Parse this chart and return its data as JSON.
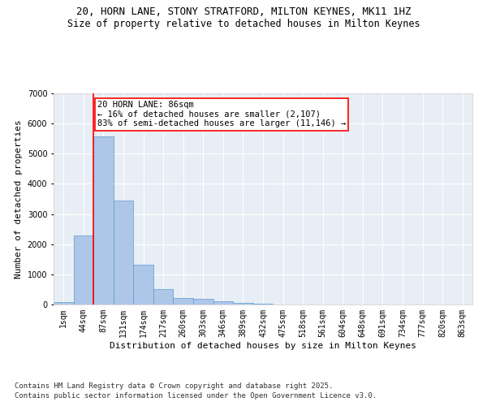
{
  "title": "20, HORN LANE, STONY STRATFORD, MILTON KEYNES, MK11 1HZ",
  "subtitle": "Size of property relative to detached houses in Milton Keynes",
  "xlabel": "Distribution of detached houses by size in Milton Keynes",
  "ylabel": "Number of detached properties",
  "categories": [
    "1sqm",
    "44sqm",
    "87sqm",
    "131sqm",
    "174sqm",
    "217sqm",
    "260sqm",
    "303sqm",
    "346sqm",
    "389sqm",
    "432sqm",
    "475sqm",
    "518sqm",
    "561sqm",
    "604sqm",
    "648sqm",
    "691sqm",
    "734sqm",
    "777sqm",
    "820sqm",
    "863sqm"
  ],
  "values": [
    75,
    2300,
    5570,
    3450,
    1320,
    510,
    215,
    190,
    100,
    65,
    40,
    0,
    0,
    0,
    0,
    0,
    0,
    0,
    0,
    0,
    0
  ],
  "bar_color": "#aec6e8",
  "bar_edge_color": "#5b9bd5",
  "vline_x": 1.5,
  "vline_color": "red",
  "annotation_text": "20 HORN LANE: 86sqm\n← 16% of detached houses are smaller (2,107)\n83% of semi-detached houses are larger (11,146) →",
  "annotation_box_color": "white",
  "annotation_box_edge_color": "red",
  "ylim": [
    0,
    7000
  ],
  "yticks": [
    0,
    1000,
    2000,
    3000,
    4000,
    5000,
    6000,
    7000
  ],
  "background_color": "#e8eef5",
  "grid_color": "white",
  "footer_line1": "Contains HM Land Registry data © Crown copyright and database right 2025.",
  "footer_line2": "Contains public sector information licensed under the Open Government Licence v3.0.",
  "title_fontsize": 9,
  "subtitle_fontsize": 8.5,
  "axis_label_fontsize": 8,
  "tick_fontsize": 7,
  "annotation_fontsize": 7.5,
  "footer_fontsize": 6.5
}
